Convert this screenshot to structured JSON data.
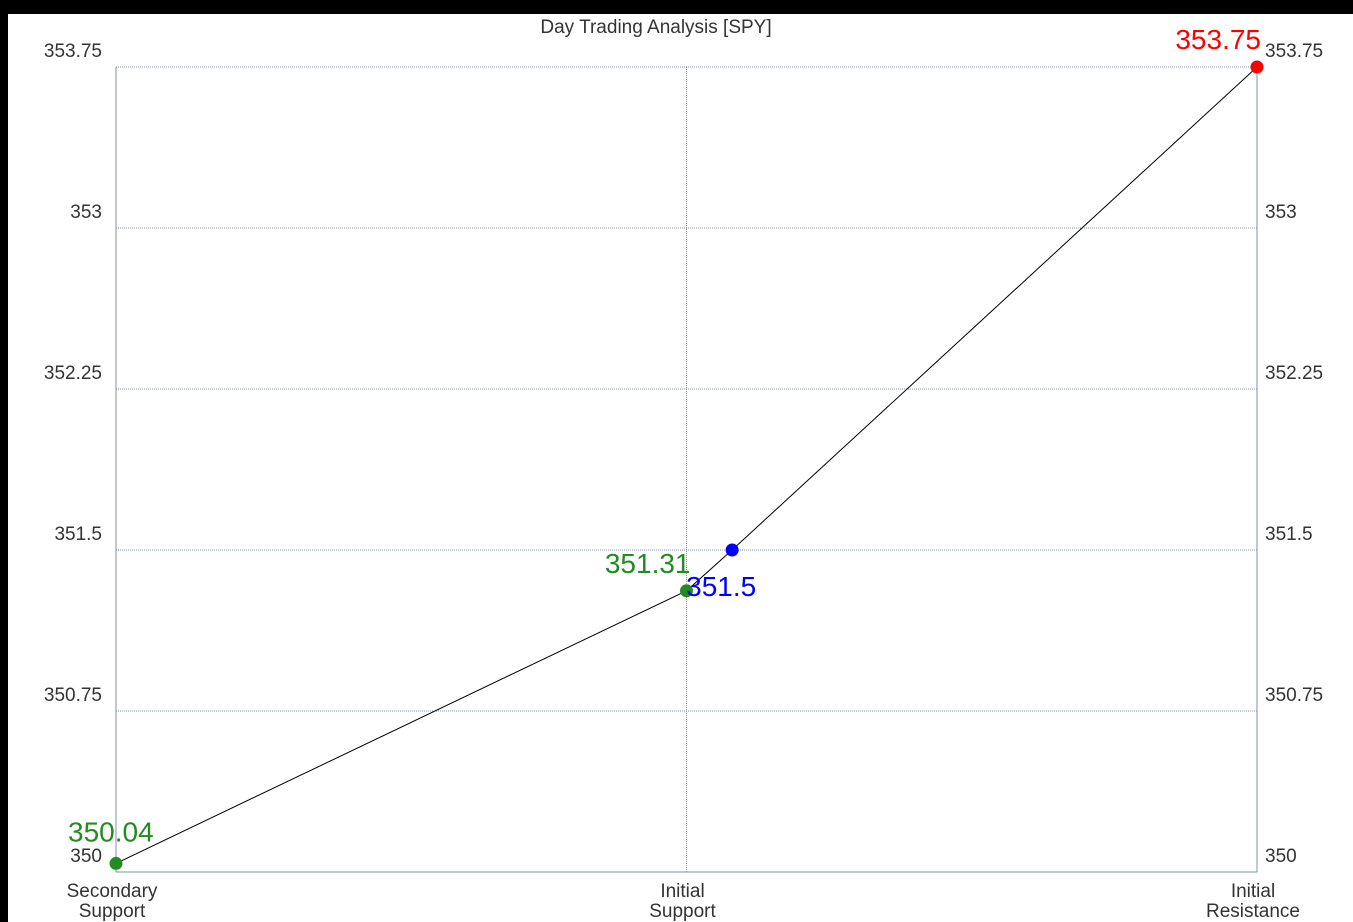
{
  "chart_data": {
    "type": "line",
    "title": "Day Trading Analysis [SPY]",
    "xlabel": "",
    "ylabel": "",
    "ylim": [
      350,
      353.75
    ],
    "yticks": [
      353.75,
      353,
      352.25,
      351.5,
      350.75,
      350
    ],
    "ytick_labels": [
      "353.75",
      "353",
      "352.25",
      "351.5",
      "350.75",
      "350"
    ],
    "xlim": [
      0,
      2
    ],
    "categories": [
      {
        "lines": [
          "Secondary",
          "Support"
        ]
      },
      {
        "lines": [
          "Initial",
          "Support"
        ]
      },
      {
        "lines": [
          "Initial",
          "Resistance"
        ]
      }
    ],
    "grid": true,
    "legend": "none",
    "line_color": "#000000",
    "grid_color": "#8090b0",
    "points": [
      {
        "x": 0,
        "y": 350.04,
        "label": "350.04",
        "color": "#228b22",
        "label_pos": "above-right"
      },
      {
        "x": 1,
        "y": 351.31,
        "label": "351.31",
        "color": "#228b22",
        "label_pos": "above-left"
      },
      {
        "x": 1.08,
        "y": 351.5,
        "label": "351.5",
        "color": "#0000ff",
        "label_pos": "below"
      },
      {
        "x": 2,
        "y": 353.75,
        "label": "353.75",
        "color": "#ff0000",
        "label_pos": "above-left"
      }
    ]
  }
}
